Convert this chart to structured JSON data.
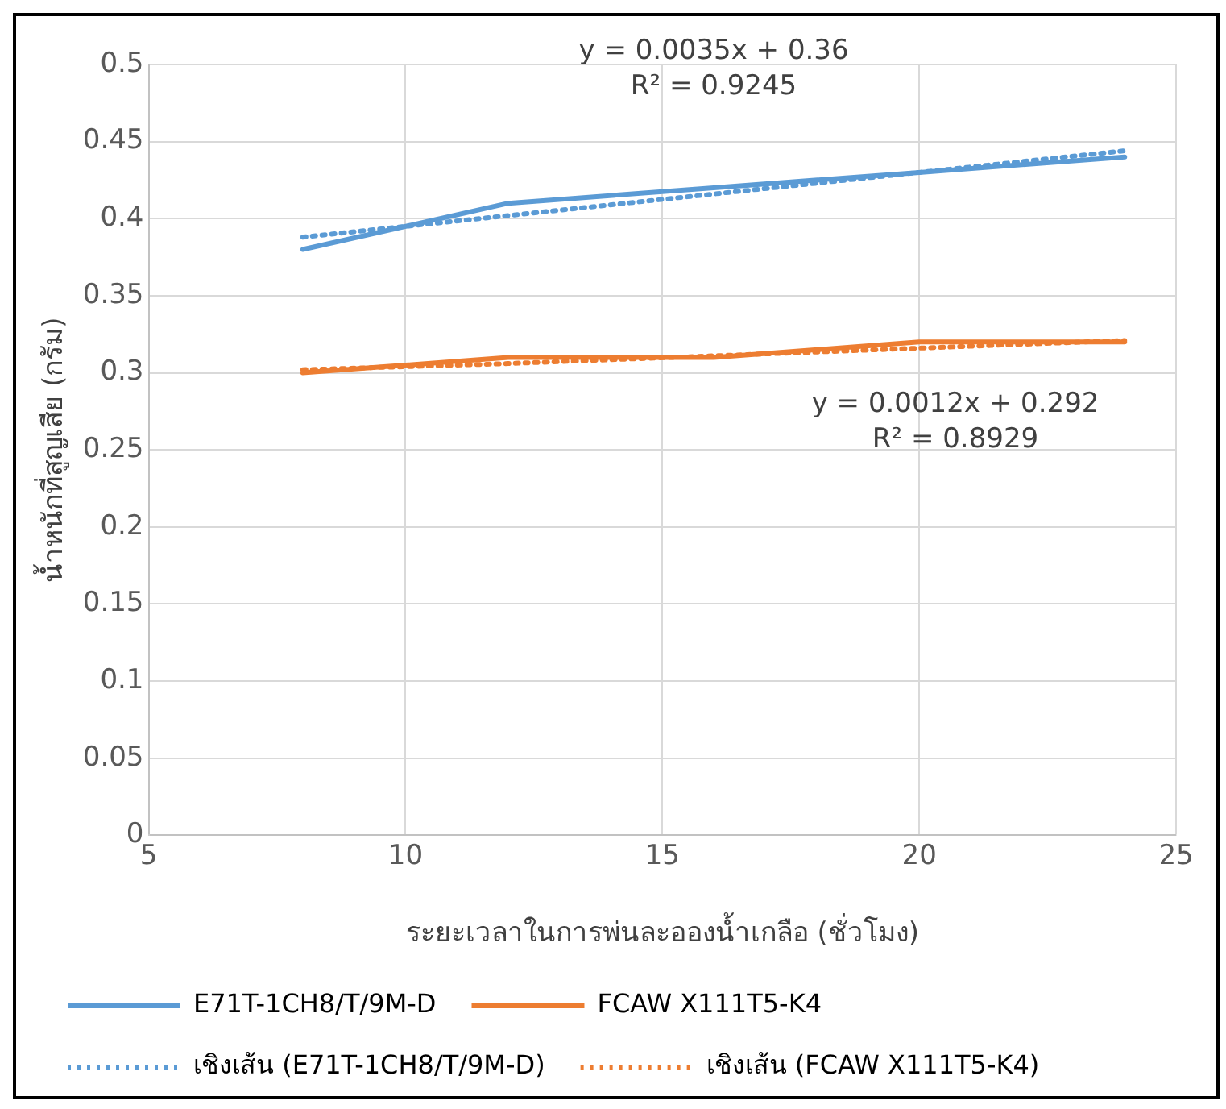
{
  "chart_data": {
    "type": "line",
    "xlabel": "ระยะเวลาในการพ่นละอองน้ำเกลือ (ชั่วโมง)",
    "ylabel": "น้ำหนักที่สูญเสีย (กรัม)",
    "x": [
      8,
      12,
      16,
      20,
      24
    ],
    "series": [
      {
        "name": "E71T-1CH8/T/9M-D",
        "color": "#5b9bd5",
        "values": [
          0.38,
          0.41,
          0.42,
          0.43,
          0.44
        ],
        "line_style": "solid"
      },
      {
        "name": "FCAW X111T5-K4",
        "color": "#ed7d31",
        "values": [
          0.3,
          0.31,
          0.31,
          0.32,
          0.32
        ],
        "line_style": "solid"
      },
      {
        "name": "เชิงเส้น (E71T-1CH8/T/9M-D)",
        "color": "#5b9bd5",
        "values": [
          0.388,
          0.402,
          0.416,
          0.43,
          0.444
        ],
        "line_style": "dotted"
      },
      {
        "name": "เชิงเส้น (FCAW X111T5-K4)",
        "color": "#ed7d31",
        "values": [
          0.302,
          0.306,
          0.311,
          0.316,
          0.321
        ],
        "line_style": "dotted"
      }
    ],
    "annotations": [
      "y = 0.0035x + 0.36\nR² = 0.9245",
      "y = 0.0012x + 0.292\nR² = 0.8929"
    ],
    "xlim": [
      5,
      25
    ],
    "xticks": [
      5,
      10,
      15,
      20,
      25
    ],
    "ylim": [
      0,
      0.5
    ],
    "yticks": [
      0,
      0.05,
      0.1,
      0.15,
      0.2,
      0.25,
      0.3,
      0.35,
      0.4,
      0.45,
      0.5
    ],
    "grid": true,
    "legend": "bottom",
    "marker": "none"
  }
}
